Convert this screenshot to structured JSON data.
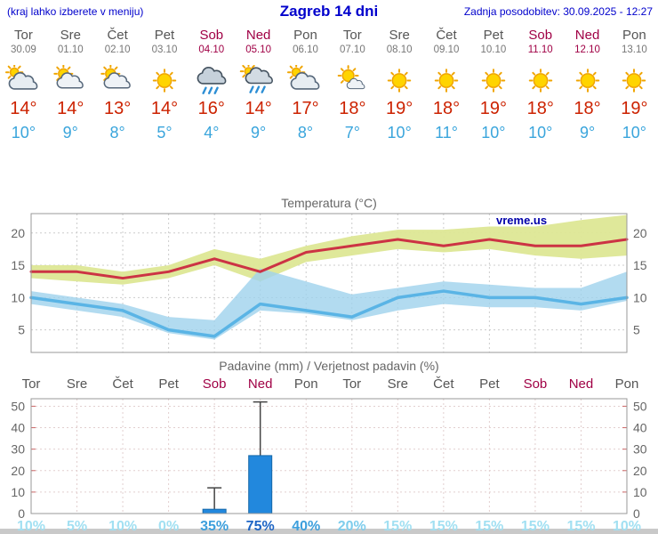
{
  "header": {
    "left_note": "(kraj lahko izberete v meniju)",
    "title": "Zagreb 14 dni",
    "updated": "Zadnja posodobitev: 30.09.2025 - 12:27"
  },
  "colors": {
    "link_blue": "#0000cc",
    "tmax_red": "#cc2200",
    "tmin_blue": "#3aa5dc",
    "tmax_line": "#cc3344",
    "tmin_line": "#5ab4e5",
    "weekend": "#a00045",
    "weekday": "#555555",
    "band_yellow": "#dde795",
    "band_blue": "#9fd2ec",
    "bar_blue": "#2288dd",
    "watermark_blue": "#0000aa",
    "prob_high": "#1d64c4",
    "prob_mid": "#3d9fdc",
    "prob_midlow": "#7fcdec",
    "prob_low": "#a2e0f2"
  },
  "days": [
    {
      "name": "Tor",
      "date": "30.09",
      "weekend": false,
      "icon": "mostly-cloudy",
      "tmax": "14°",
      "tmin": "10°"
    },
    {
      "name": "Sre",
      "date": "01.10",
      "weekend": false,
      "icon": "partly-cloudy",
      "tmax": "14°",
      "tmin": "9°"
    },
    {
      "name": "Čet",
      "date": "02.10",
      "weekend": false,
      "icon": "partly-cloudy",
      "tmax": "13°",
      "tmin": "8°"
    },
    {
      "name": "Pet",
      "date": "03.10",
      "weekend": false,
      "icon": "sunny",
      "tmax": "14°",
      "tmin": "5°"
    },
    {
      "name": "Sob",
      "date": "04.10",
      "weekend": true,
      "icon": "rain",
      "tmax": "16°",
      "tmin": "4°"
    },
    {
      "name": "Ned",
      "date": "05.10",
      "weekend": true,
      "icon": "showers",
      "tmax": "14°",
      "tmin": "9°"
    },
    {
      "name": "Pon",
      "date": "06.10",
      "weekend": false,
      "icon": "mostly-cloudy",
      "tmax": "17°",
      "tmin": "8°"
    },
    {
      "name": "Tor",
      "date": "07.10",
      "weekend": false,
      "icon": "mostly-sunny",
      "tmax": "18°",
      "tmin": "7°"
    },
    {
      "name": "Sre",
      "date": "08.10",
      "weekend": false,
      "icon": "sunny",
      "tmax": "19°",
      "tmin": "10°"
    },
    {
      "name": "Čet",
      "date": "09.10",
      "weekend": false,
      "icon": "sunny",
      "tmax": "18°",
      "tmin": "11°"
    },
    {
      "name": "Pet",
      "date": "10.10",
      "weekend": false,
      "icon": "sunny",
      "tmax": "19°",
      "tmin": "10°"
    },
    {
      "name": "Sob",
      "date": "11.10",
      "weekend": true,
      "icon": "sunny",
      "tmax": "18°",
      "tmin": "10°"
    },
    {
      "name": "Ned",
      "date": "12.10",
      "weekend": true,
      "icon": "sunny",
      "tmax": "18°",
      "tmin": "9°"
    },
    {
      "name": "Pon",
      "date": "13.10",
      "weekend": false,
      "icon": "sunny",
      "tmax": "19°",
      "tmin": "10°"
    }
  ],
  "chart_data": [
    {
      "type": "line",
      "title": "Temperatura (°C)",
      "watermark": "vreme.us",
      "ylim": [
        1.5,
        23
      ],
      "yticks": [
        5,
        10,
        15,
        20
      ],
      "grid": true,
      "legend": "none",
      "series": [
        {
          "name": "tmax",
          "values": [
            14,
            14,
            13,
            14,
            16,
            14,
            17,
            18,
            19,
            18,
            19,
            18,
            18,
            19
          ]
        },
        {
          "name": "tmax_range_upper",
          "values": [
            15,
            15,
            14,
            15,
            17.5,
            16,
            18,
            19.5,
            20.5,
            20.5,
            21,
            21,
            22,
            22.8
          ]
        },
        {
          "name": "tmax_range_lower",
          "values": [
            13,
            12.5,
            12,
            13,
            15,
            12.5,
            15.5,
            16.5,
            17.5,
            17,
            17.5,
            16.5,
            16,
            16.5
          ]
        },
        {
          "name": "tmin",
          "values": [
            10,
            9,
            8,
            5,
            4,
            9,
            8,
            7,
            10,
            11,
            10,
            10,
            9,
            10
          ]
        },
        {
          "name": "tmin_range_upper",
          "values": [
            11,
            10,
            9,
            7,
            6.5,
            14.5,
            12.5,
            10.5,
            11.5,
            12.5,
            12,
            11.5,
            11.5,
            14
          ]
        },
        {
          "name": "tmin_range_lower",
          "values": [
            9,
            8,
            7,
            4.5,
            3.5,
            8,
            7.5,
            6.5,
            8,
            9,
            8.5,
            8.5,
            8,
            9.5
          ]
        }
      ]
    },
    {
      "type": "bar",
      "title": "Padavine (mm) / Verjetnost padavin (%)",
      "categories": [
        "Tor",
        "Sre",
        "Čet",
        "Pet",
        "Sob",
        "Ned",
        "Pon",
        "Tor",
        "Sre",
        "Čet",
        "Pet",
        "Sob",
        "Ned",
        "Pon"
      ],
      "values": [
        0,
        0,
        0,
        0,
        2,
        27,
        0,
        0,
        0,
        0,
        0,
        0,
        0,
        0
      ],
      "whisker_max": [
        0,
        0,
        0,
        0,
        12,
        52,
        0,
        0,
        0,
        0,
        0,
        0,
        0,
        0
      ],
      "probabilities": [
        10,
        5,
        10,
        0,
        35,
        75,
        40,
        20,
        15,
        15,
        15,
        15,
        15,
        10
      ],
      "ylim": [
        0,
        53.5
      ],
      "yticks": [
        0,
        10,
        20,
        30,
        40,
        50
      ]
    }
  ]
}
